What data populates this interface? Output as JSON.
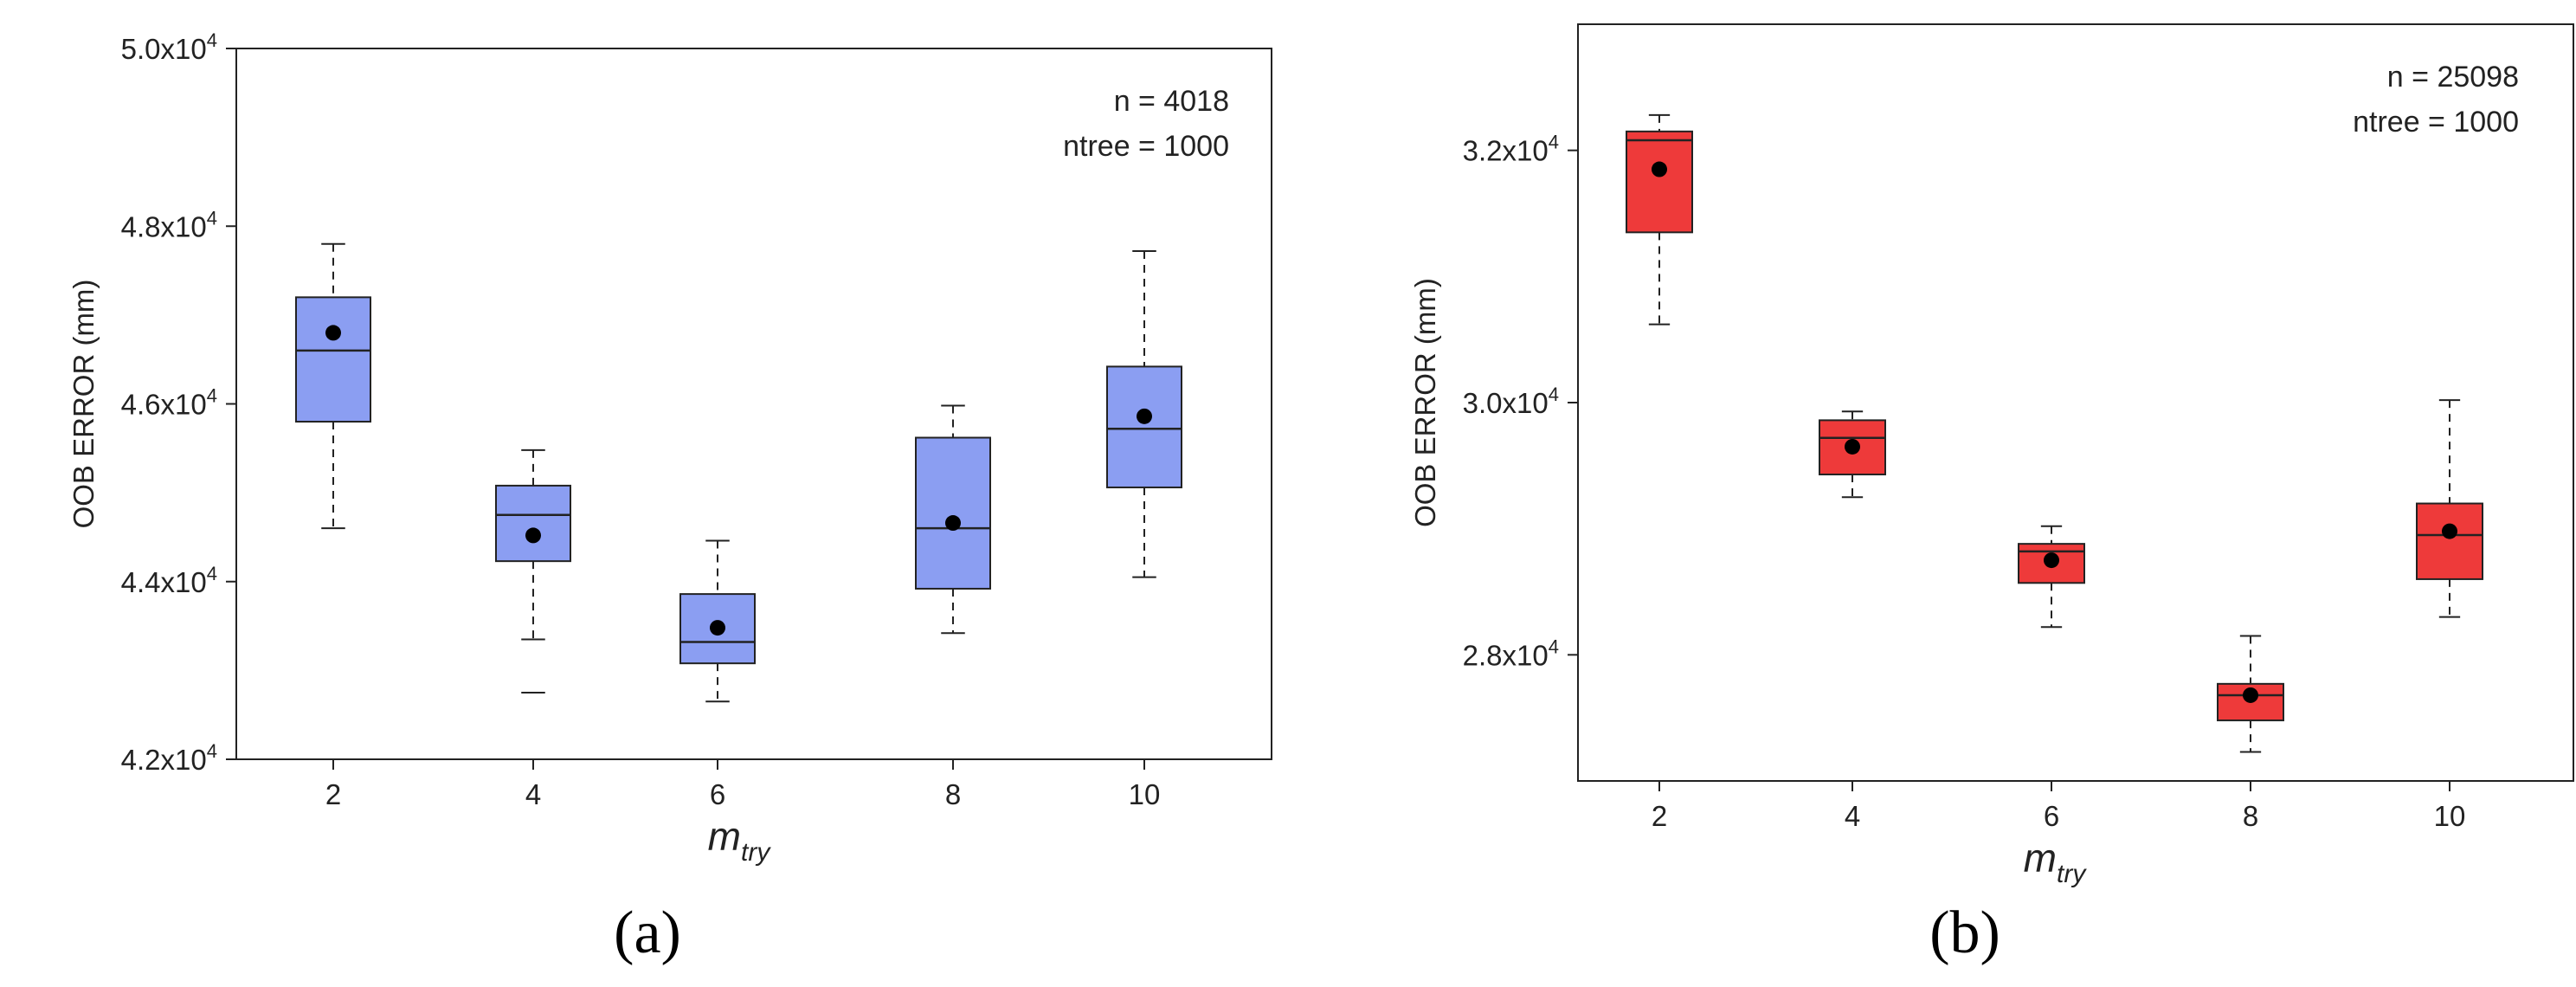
{
  "chart_data": [
    {
      "type": "box",
      "panel_label": "(a)",
      "annotations": [
        "n = 4018",
        "ntree = 1000"
      ],
      "xlabel": {
        "main": "m",
        "sub": "try"
      },
      "ylabel": "OOB ERROR (mm)",
      "ylim": [
        42000,
        50000
      ],
      "yticks": [
        {
          "value": 42000,
          "mantissa": "4.2x10",
          "exp": "4"
        },
        {
          "value": 44000,
          "mantissa": "4.4x10",
          "exp": "4"
        },
        {
          "value": 46000,
          "mantissa": "4.6x10",
          "exp": "4"
        },
        {
          "value": 48000,
          "mantissa": "4.8x10",
          "exp": "4"
        },
        {
          "value": 50000,
          "mantissa": "5.0x10",
          "exp": "4"
        }
      ],
      "categories": [
        "2",
        "4",
        "6",
        "8",
        "10"
      ],
      "box_color": "#8b9ef2",
      "boxes": [
        {
          "x": "2",
          "whisker_low": 44600,
          "q1": 45800,
          "median": 46600,
          "q3": 47200,
          "whisker_high": 47800,
          "mean": 46800
        },
        {
          "x": "4",
          "whisker_low": 43350,
          "q1": 44230,
          "median": 44750,
          "q3": 45080,
          "whisker_high": 45480,
          "mean": 44520,
          "outliers": [
            42750
          ]
        },
        {
          "x": "6",
          "whisker_low": 42650,
          "q1": 43080,
          "median": 43320,
          "q3": 43860,
          "whisker_high": 44460,
          "mean": 43480
        },
        {
          "x": "8",
          "whisker_low": 43420,
          "q1": 43920,
          "median": 44600,
          "q3": 45620,
          "whisker_high": 45980,
          "mean": 44660
        },
        {
          "x": "10",
          "whisker_low": 44050,
          "q1": 45060,
          "median": 45720,
          "q3": 46420,
          "whisker_high": 47720,
          "mean": 45860
        }
      ]
    },
    {
      "type": "box",
      "panel_label": "(b)",
      "annotations": [
        "n = 25098",
        "ntree = 1000"
      ],
      "xlabel": {
        "main": "m",
        "sub": "try"
      },
      "ylabel": "OOB ERROR (mm)",
      "ylim": [
        27000,
        33000
      ],
      "yticks": [
        {
          "value": 28000,
          "mantissa": "2.8x10",
          "exp": "4"
        },
        {
          "value": 30000,
          "mantissa": "3.0x10",
          "exp": "4"
        },
        {
          "value": 32000,
          "mantissa": "3.2x10",
          "exp": "4"
        }
      ],
      "categories": [
        "2",
        "4",
        "6",
        "8",
        "10"
      ],
      "box_color": "#ee3a3a",
      "boxes": [
        {
          "x": "2",
          "whisker_low": 30620,
          "q1": 31350,
          "median": 32080,
          "q3": 32150,
          "whisker_high": 32280,
          "mean": 31850
        },
        {
          "x": "4",
          "whisker_low": 29250,
          "q1": 29430,
          "median": 29720,
          "q3": 29860,
          "whisker_high": 29930,
          "mean": 29650
        },
        {
          "x": "6",
          "whisker_low": 28220,
          "q1": 28570,
          "median": 28820,
          "q3": 28880,
          "whisker_high": 29020,
          "mean": 28750
        },
        {
          "x": "8",
          "whisker_low": 27230,
          "q1": 27480,
          "median": 27680,
          "q3": 27770,
          "whisker_high": 28150,
          "mean": 27680
        },
        {
          "x": "10",
          "whisker_low": 28300,
          "q1": 28600,
          "median": 28950,
          "q3": 29200,
          "whisker_high": 30020,
          "mean": 28980
        }
      ]
    }
  ]
}
